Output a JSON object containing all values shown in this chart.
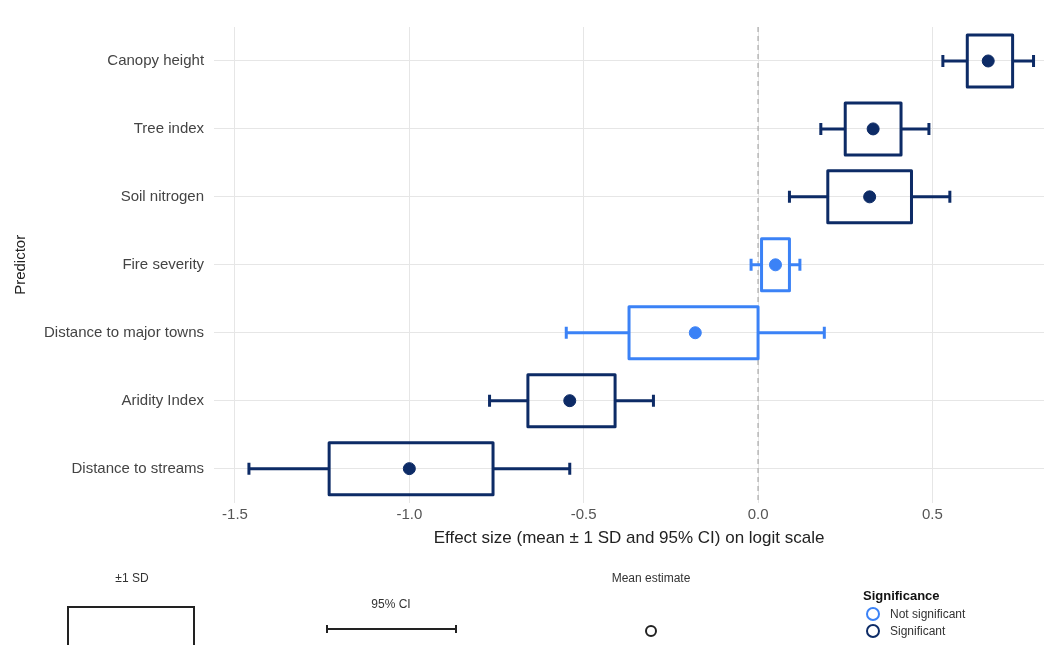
{
  "chart_data": {
    "type": "box",
    "orientation": "horizontal",
    "xlabel": "Effect size (mean ± 1 SD and 95% CI) on logit scale",
    "ylabel": "Predictor",
    "categories": [
      "Canopy height",
      "Tree index",
      "Soil nitrogen",
      "Fire severity",
      "Distance to major towns",
      "Aridity Index",
      "Distance to streams"
    ],
    "series": [
      {
        "name": "Not significant",
        "color": "#3b82f6",
        "boxes": [
          null,
          null,
          null,
          {
            "low": -0.02,
            "q1": 0.01,
            "median": 0.05,
            "q3": 0.09,
            "high": 0.12
          },
          {
            "low": -0.55,
            "q1": -0.37,
            "median": -0.18,
            "q3": 0.0,
            "high": 0.19
          },
          null,
          null
        ]
      },
      {
        "name": "Significant",
        "color": "#0d2b66",
        "boxes": [
          {
            "low": 0.53,
            "q1": 0.6,
            "median": 0.66,
            "q3": 0.73,
            "high": 0.79
          },
          {
            "low": 0.18,
            "q1": 0.25,
            "median": 0.33,
            "q3": 0.41,
            "high": 0.49
          },
          {
            "low": 0.09,
            "q1": 0.2,
            "median": 0.32,
            "q3": 0.44,
            "high": 0.55
          },
          null,
          null,
          {
            "low": -0.77,
            "q1": -0.66,
            "median": -0.54,
            "q3": -0.41,
            "high": -0.3
          },
          {
            "low": -1.46,
            "q1": -1.23,
            "median": -1.0,
            "q3": -0.76,
            "high": -0.54
          }
        ]
      }
    ],
    "xlim": [
      -1.56,
      0.82
    ],
    "xticks": [
      {
        "value": -1.5,
        "label": "-1.5"
      },
      {
        "value": -1,
        "label": "-1.0"
      },
      {
        "value": -0.5,
        "label": "-0.5"
      },
      {
        "value": 0,
        "label": "0.0"
      },
      {
        "value": 0.5,
        "label": "0.5"
      }
    ],
    "ref_lines": [
      {
        "axis": "x",
        "value": 0,
        "color": "#aaaaaa",
        "line_style": "dashed"
      }
    ],
    "grid": true,
    "marker": "circle",
    "legend": "bottom right",
    "legend_title": "Significance",
    "annotations": [
      "±1 SD",
      "95% CI",
      "Mean estimate"
    ]
  }
}
